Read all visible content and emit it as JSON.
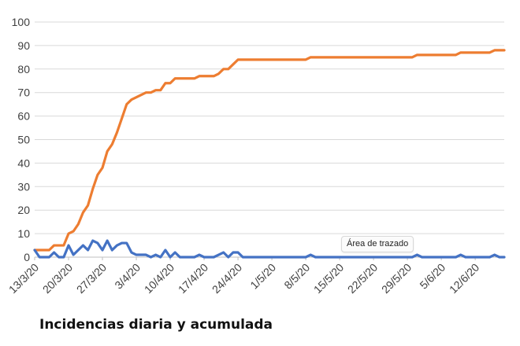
{
  "caption": "Incidencias diaria y acumulada",
  "tooltip": "Área de trazado",
  "colors": {
    "daily": "#4472c4",
    "cumulative": "#ed7d31",
    "grid": "#d9d9d9"
  },
  "chart_data": {
    "type": "line",
    "title": "",
    "xlabel": "",
    "ylabel": "",
    "ylim": [
      0,
      100
    ],
    "yticks": [
      0,
      10,
      20,
      30,
      40,
      50,
      60,
      70,
      80,
      90,
      100
    ],
    "x_start": "13/3/20",
    "x_tick_labels": [
      "13/3/20",
      "20/3/20",
      "27/3/20",
      "3/4/20",
      "10/4/20",
      "17/4/20",
      "24/4/20",
      "1/5/20",
      "8/5/20",
      "15/5/20",
      "22/5/20",
      "29/5/20",
      "5/6/20",
      "12/6/20"
    ],
    "grid": "horizontal",
    "legend": "none",
    "series": [
      {
        "key": "cumulative",
        "values": [
          3,
          3,
          3,
          3,
          5,
          5,
          5,
          10,
          11,
          14,
          19,
          22,
          29,
          35,
          38,
          45,
          48,
          53,
          59,
          65,
          67,
          68,
          69,
          70,
          70,
          71,
          71,
          74,
          74,
          76,
          76,
          76,
          76,
          76,
          77,
          77,
          77,
          77,
          78,
          80,
          80,
          82,
          84,
          84,
          84,
          84,
          84,
          84,
          84,
          84,
          84,
          84,
          84,
          84,
          84,
          84,
          84,
          85,
          85,
          85,
          85,
          85,
          85,
          85,
          85,
          85,
          85,
          85,
          85,
          85,
          85,
          85,
          85,
          85,
          85,
          85,
          85,
          85,
          85,
          86,
          86,
          86,
          86,
          86,
          86,
          86,
          86,
          86,
          87,
          87,
          87,
          87,
          87,
          87,
          87,
          88,
          88,
          88
        ]
      },
      {
        "key": "daily",
        "values": [
          3,
          0,
          0,
          0,
          2,
          0,
          0,
          5,
          1,
          3,
          5,
          3,
          7,
          6,
          3,
          7,
          3,
          5,
          6,
          6,
          2,
          1,
          1,
          1,
          0,
          1,
          0,
          3,
          0,
          2,
          0,
          0,
          0,
          0,
          1,
          0,
          0,
          0,
          1,
          2,
          0,
          2,
          2,
          0,
          0,
          0,
          0,
          0,
          0,
          0,
          0,
          0,
          0,
          0,
          0,
          0,
          0,
          1,
          0,
          0,
          0,
          0,
          0,
          0,
          0,
          0,
          0,
          0,
          0,
          0,
          0,
          0,
          0,
          0,
          0,
          0,
          0,
          0,
          0,
          1,
          0,
          0,
          0,
          0,
          0,
          0,
          0,
          0,
          1,
          0,
          0,
          0,
          0,
          0,
          0,
          1,
          0,
          0
        ]
      }
    ]
  }
}
